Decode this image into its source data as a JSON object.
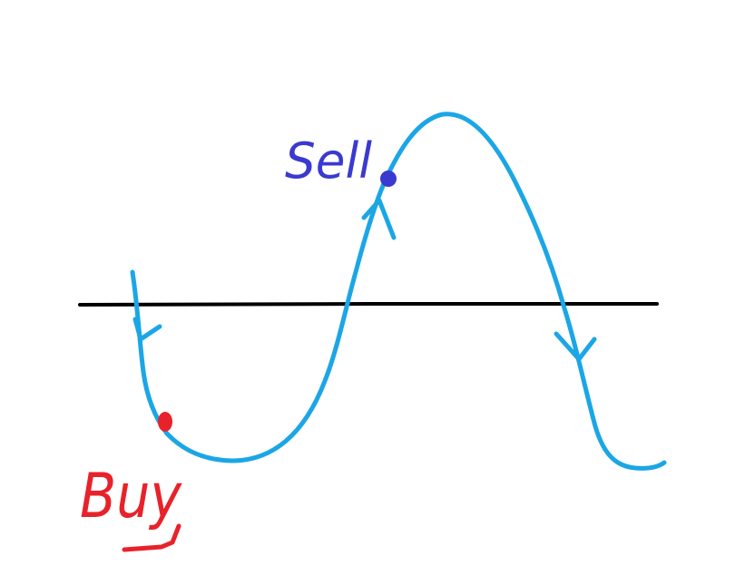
{
  "colors": {
    "background": "#ffffff",
    "baseline": "#000000",
    "curve": "#1ba6e6",
    "buy": "#e8222a",
    "sell": "#3a3ad0"
  },
  "labels": {
    "sell": "Sell",
    "buy": "Buy"
  }
}
